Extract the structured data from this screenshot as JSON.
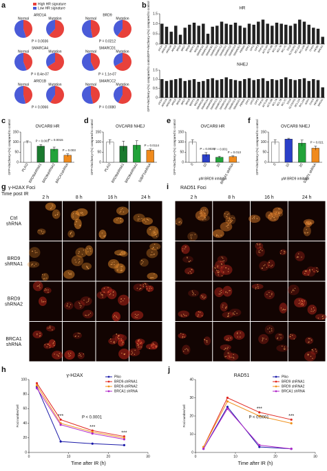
{
  "panel_labels": [
    "a",
    "b",
    "c",
    "d",
    "e",
    "f",
    "g",
    "i",
    "h",
    "j"
  ],
  "chart_data": [
    {
      "type": "pie",
      "series_names": [
        "High HR signature",
        "Low HR signature"
      ],
      "colors": [
        "#e8413b",
        "#4a5bd8"
      ],
      "group_labels": [
        "Normal",
        "Mutation"
      ],
      "genes": [
        {
          "name": "ARID1A",
          "values": [
            [
              45,
              55
            ],
            [
              62,
              38
            ]
          ],
          "p": "P = 0.0036"
        },
        {
          "name": "BRD9",
          "values": [
            [
              47,
              53
            ],
            [
              60,
              40
            ]
          ],
          "p": "P = 0.0212"
        },
        {
          "name": "SMARCA4",
          "values": [
            [
              44,
              56
            ],
            [
              66,
              34
            ]
          ],
          "p": "P = 8.4e-07"
        },
        {
          "name": "SMARCD1",
          "values": [
            [
              43,
              57
            ],
            [
              67,
              33
            ]
          ],
          "p": "P = 1.1e-07"
        },
        {
          "name": "ARID1B",
          "values": [
            [
              46,
              54
            ],
            [
              59,
              41
            ]
          ],
          "p": "P = 0.0066"
        },
        {
          "name": "SMARCC2",
          "values": [
            [
              46,
              54
            ],
            [
              58,
              42
            ]
          ],
          "p": "P = 0.0080"
        }
      ]
    },
    {
      "type": "bar",
      "title": "HR",
      "ylabel": "GFP+/mCherry+(%) compared to control",
      "color": "#222222",
      "categories": [
        "shCtrl",
        "ARID1A",
        "ARID1B",
        "ARID2",
        "BRD9",
        "BRD7",
        "BRD8",
        "BRPF1",
        "BAZ1B",
        "SMARCA2",
        "SMARCA4",
        "SMARCB1",
        "SMARCC1",
        "SMARCC2",
        "SMARCD1",
        "SMARCD2",
        "SMARCD3",
        "SMARCE1",
        "PBRM1",
        "DPF1",
        "DPF2",
        "DPF3",
        "PHF10",
        "ACTL6A",
        "ACTL6B",
        "BCL7A",
        "BCL7B",
        "BCL7C",
        "SS18",
        "GLTSCR1",
        "BCL11A",
        "BCL11B",
        "ATRX",
        "CHD4",
        "INO80",
        "BRCA1"
      ],
      "values": [
        1.0,
        0.85,
        0.6,
        0.9,
        0.45,
        0.8,
        0.95,
        1.05,
        0.9,
        1.0,
        0.5,
        0.85,
        0.9,
        1.1,
        1.0,
        0.95,
        1.05,
        0.9,
        0.8,
        1.0,
        0.95,
        1.1,
        1.2,
        1.0,
        0.9,
        1.05,
        1.0,
        0.95,
        0.9,
        1.0,
        1.2,
        1.1,
        0.95,
        0.8,
        0.75,
        0.35
      ],
      "ylim": [
        0,
        1.5
      ],
      "yticks": [
        0,
        0.5,
        {
          "value": 1,
          "label": "1.0"
        },
        1.5
      ]
    },
    {
      "type": "bar",
      "title": "NHEJ",
      "ylabel": "GFP+/mCherry+(%) compared to control",
      "color": "#222222",
      "categories": [
        "shCtrl",
        "ARID1A",
        "ARID1B",
        "ARID2",
        "BRD9",
        "BRD7",
        "BRD8",
        "BRPF1",
        "BAZ1B",
        "SMARCA2",
        "SMARCA4",
        "SMARCB1",
        "SMARCC1",
        "SMARCC2",
        "SMARCD1",
        "SMARCD2",
        "SMARCD3",
        "SMARCE1",
        "PBRM1",
        "DPF1",
        "DPF2",
        "DPF3",
        "PHF10",
        "ACTL6A",
        "ACTL6B",
        "BCL7A",
        "BCL7B",
        "BCL7C",
        "SS18",
        "GLTSCR1",
        "BCL11A",
        "BCL11B",
        "ATRX",
        "CHD4",
        "INO80",
        "BRCA1"
      ],
      "values": [
        1.0,
        0.9,
        0.95,
        1.0,
        1.05,
        0.9,
        0.95,
        1.0,
        0.85,
        0.9,
        1.0,
        1.05,
        0.95,
        1.0,
        1.1,
        1.0,
        0.95,
        0.9,
        1.0,
        1.05,
        0.95,
        1.0,
        1.05,
        0.9,
        1.0,
        0.95,
        1.0,
        1.1,
        1.0,
        0.95,
        1.0,
        1.05,
        0.9,
        1.0,
        0.95,
        0.55
      ],
      "ylim": [
        0,
        1.5
      ],
      "yticks": [
        0,
        0.5,
        {
          "value": 1,
          "label": "1.0"
        },
        1.5
      ]
    },
    {
      "type": "bar",
      "title": "OVCAR8 HR",
      "ylabel": "GFP+/mCherry+(%) compared to control",
      "categories": [
        "PLKO",
        "BRD9shRNA1",
        "BRD9shRNA2",
        "BRCA1shRNA"
      ],
      "values": [
        100,
        80,
        65,
        35
      ],
      "errors": [
        6,
        8,
        10,
        7
      ],
      "colors": [
        "#ffffff",
        "#1a7a2e",
        "#22a33a",
        "#f08a1c"
      ],
      "ylim": [
        0,
        150
      ],
      "yticks": [
        0,
        50,
        100,
        150
      ],
      "annotations": [
        "P = 0.003",
        "P = 0.0015",
        "P = 0.003"
      ]
    },
    {
      "type": "bar",
      "title": "OVCAR8 NHEJ",
      "ylabel": "GFP+/mCherry+(%) compared to control",
      "categories": [
        "PLKO",
        "BRD9shRNA1",
        "BRD9shRNA2",
        "53BP1shRNA"
      ],
      "values": [
        100,
        80,
        85,
        60
      ],
      "errors": [
        12,
        25,
        22,
        6
      ],
      "colors": [
        "#ffffff",
        "#1a7a2e",
        "#22a33a",
        "#f08a1c"
      ],
      "ylim": [
        0,
        150
      ],
      "yticks": [
        0,
        50,
        100,
        150
      ],
      "annotations": [
        "P = 0.0114"
      ]
    },
    {
      "type": "bar",
      "title": "OVCAR8 HR",
      "ylabel": "GFP+/mCherry+(%) compared to control",
      "xlabel": "μM BRD9 inhibitor",
      "categories": [
        "0",
        "10",
        "20",
        "BRCA1 shRNA"
      ],
      "values": [
        100,
        38,
        25,
        28
      ],
      "errors": [
        12,
        10,
        5,
        4
      ],
      "colors": [
        "#ffffff",
        "#2a3fc8",
        "#22a33a",
        "#f08a1c"
      ],
      "ylim": [
        0,
        150
      ],
      "yticks": [
        0,
        50,
        100,
        150
      ],
      "annotations": [
        "P = 0.0035",
        "P = 0.001",
        "P = 0.013"
      ]
    },
    {
      "type": "bar",
      "title": "OVCAR8 NHEJ",
      "ylabel": "GFP+/mCherry+(%) compared to control",
      "xlabel": "μM BRD9 inhibitor",
      "categories": [
        "0",
        "10",
        "20",
        "53BP1 shRNA"
      ],
      "values": [
        100,
        115,
        95,
        70
      ],
      "errors": [
        12,
        4,
        15,
        10
      ],
      "colors": [
        "#ffffff",
        "#2a3fc8",
        "#22a33a",
        "#f08a1c"
      ],
      "ylim": [
        0,
        150
      ],
      "yticks": [
        0,
        50,
        100,
        150
      ],
      "annotations": [
        "P = 0.021"
      ]
    },
    {
      "type": "line",
      "title": "γ-H2AX",
      "xlabel": "Time after IR (h)",
      "ylabel": "Foci number/cell",
      "x": [
        2,
        8,
        16,
        24
      ],
      "xlim": [
        0,
        30
      ],
      "xticks": [
        0,
        10,
        20,
        30
      ],
      "ylim": [
        0,
        100
      ],
      "yticks": [
        0,
        20,
        40,
        60,
        80,
        100
      ],
      "series": [
        {
          "name": "Plko",
          "color": "#1a1aa8",
          "values": [
            90,
            15,
            12,
            10
          ]
        },
        {
          "name": "BRD9-shRNA1",
          "color": "#e0261e",
          "values": [
            95,
            45,
            30,
            22
          ]
        },
        {
          "name": "BRD9-shRNA2",
          "color": "#f0921c",
          "values": [
            92,
            40,
            28,
            20
          ]
        },
        {
          "name": "BRCA1 shRNA",
          "color": "#b026c8",
          "values": [
            88,
            38,
            26,
            18
          ]
        }
      ],
      "annotations": [
        "***",
        "***",
        "***",
        "P < 0.0001"
      ]
    },
    {
      "type": "line",
      "title": "RAD51",
      "xlabel": "Time after IR (h)",
      "ylabel": "Foci number/cell",
      "x": [
        2,
        8,
        16,
        24
      ],
      "xlim": [
        0,
        30
      ],
      "xticks": [
        0,
        10,
        20,
        30
      ],
      "ylim": [
        0,
        40
      ],
      "yticks": [
        0,
        10,
        20,
        30,
        40
      ],
      "series": [
        {
          "name": "Plko",
          "color": "#1a1aa8",
          "values": [
            2,
            25,
            3,
            2
          ]
        },
        {
          "name": "BRD9 shRNA1",
          "color": "#e0261e",
          "values": [
            3,
            30,
            22,
            18
          ]
        },
        {
          "name": "BRD9 shRNA2",
          "color": "#f0921c",
          "values": [
            3,
            28,
            20,
            16
          ]
        },
        {
          "name": "BRCA1 shRNA",
          "color": "#b026c8",
          "values": [
            2,
            24,
            4,
            2
          ]
        }
      ],
      "annotations": [
        "***",
        "***",
        "P < 0.0001"
      ]
    }
  ],
  "microscopy": [
    {
      "title": "γ-H2AX Foci",
      "subtitle": "Time post IR",
      "columns": [
        "2 h",
        "8 h",
        "16 h",
        "24 h"
      ],
      "rows": [
        "Ctrl shRNA",
        "BRD9 shRNA1",
        "BRD9 shRNA2",
        "BRCA1 shRNA"
      ]
    },
    {
      "title": "RAD51 Foci",
      "columns": [
        "2 h",
        "8 h",
        "16 h",
        "24 h"
      ]
    }
  ]
}
